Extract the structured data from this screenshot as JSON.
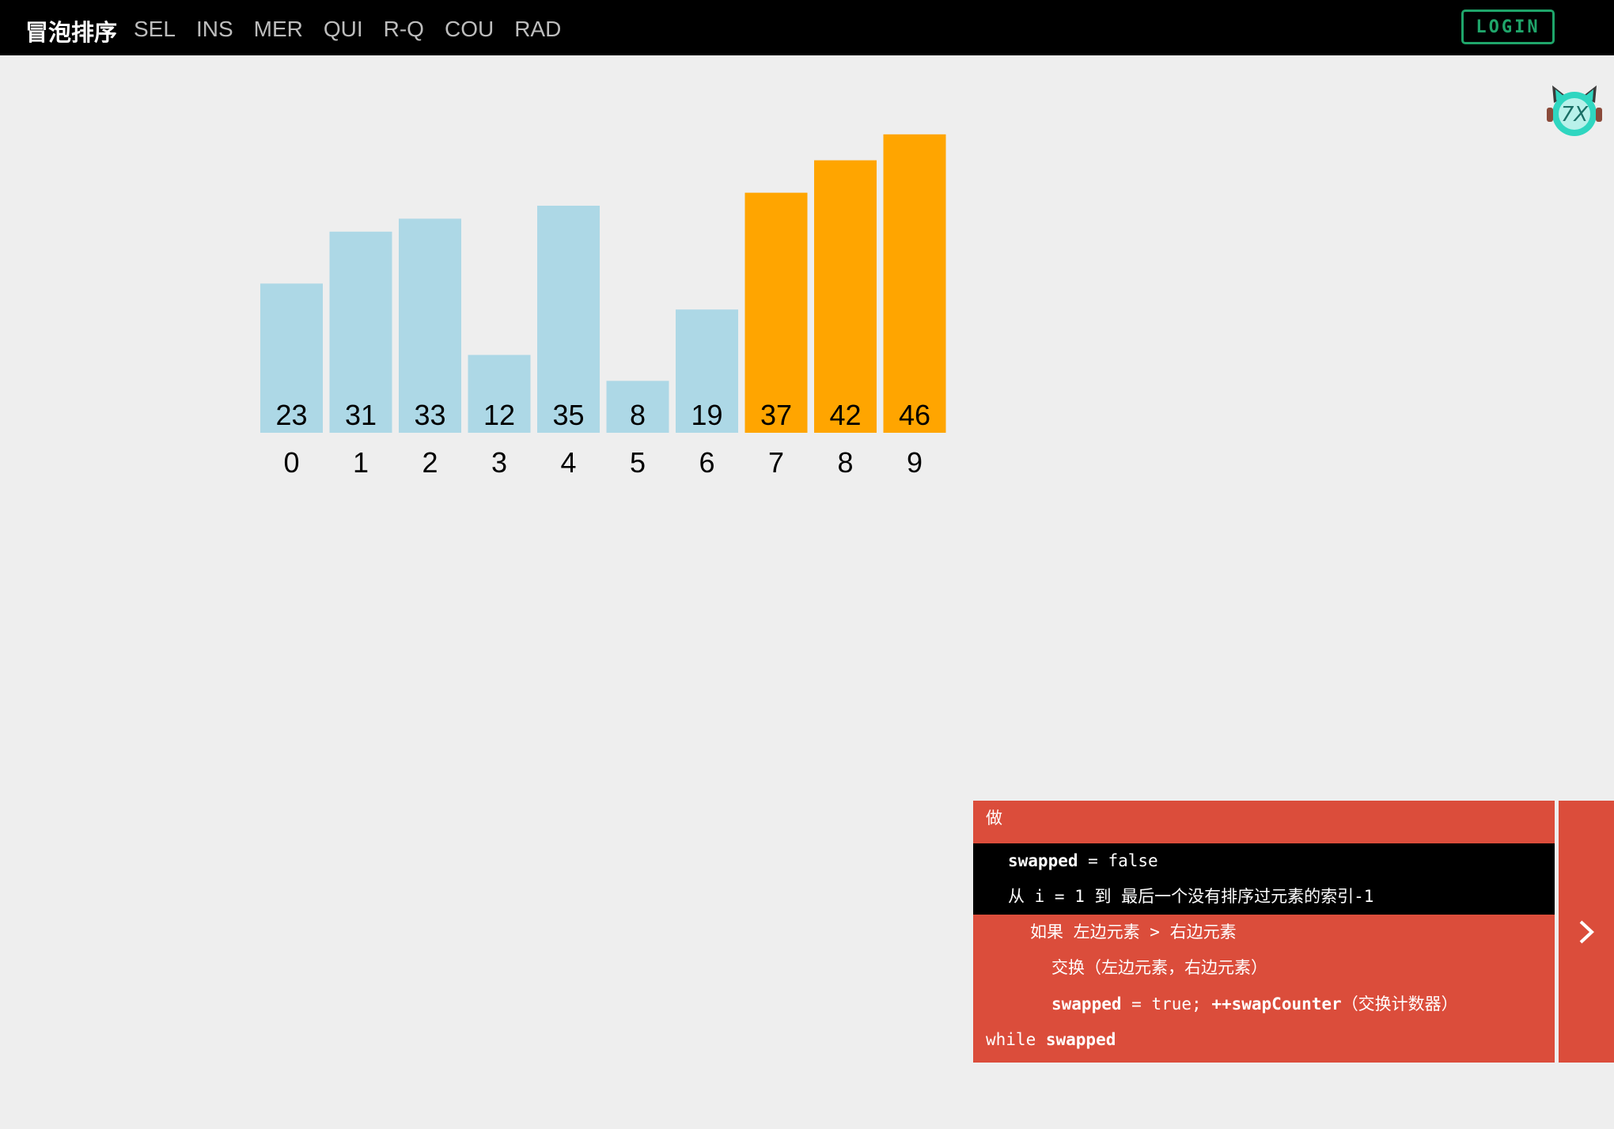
{
  "header": {
    "brand": "冒泡排序",
    "nav": [
      "SEL",
      "INS",
      "MER",
      "QUI",
      "R-Q",
      "COU",
      "RAD"
    ],
    "login": "LOGIN"
  },
  "chart_data": {
    "type": "bar",
    "categories": [
      "0",
      "1",
      "2",
      "3",
      "4",
      "5",
      "6",
      "7",
      "8",
      "9"
    ],
    "values": [
      23,
      31,
      33,
      12,
      35,
      8,
      19,
      37,
      42,
      46
    ],
    "sorted_from_index": 7,
    "colors": {
      "unsorted": "#add8e6",
      "sorted": "#ffa500"
    }
  },
  "code": {
    "lines": [
      {
        "parts": [
          "做"
        ]
      },
      {
        "parts": [
          "swapped",
          " = false"
        ]
      },
      {
        "parts": [
          "从 i = 1 到 最后一个没有排序过元素的索引-1"
        ]
      },
      {
        "parts": [
          "如果 左边元素 > 右边元素"
        ]
      },
      {
        "parts": [
          "交换（左边元素，右边元素）"
        ]
      },
      {
        "parts": [
          "swapped",
          " = true; ",
          "++swapCounter",
          "（交换计数器）"
        ]
      },
      {
        "parts": [
          "while ",
          "swapped"
        ]
      }
    ],
    "highlight_lines": [
      1,
      2
    ]
  },
  "toggle_icon": "chevron-right-icon",
  "colors": {
    "panel": "#db4d3b",
    "login": "#1fa56a"
  }
}
